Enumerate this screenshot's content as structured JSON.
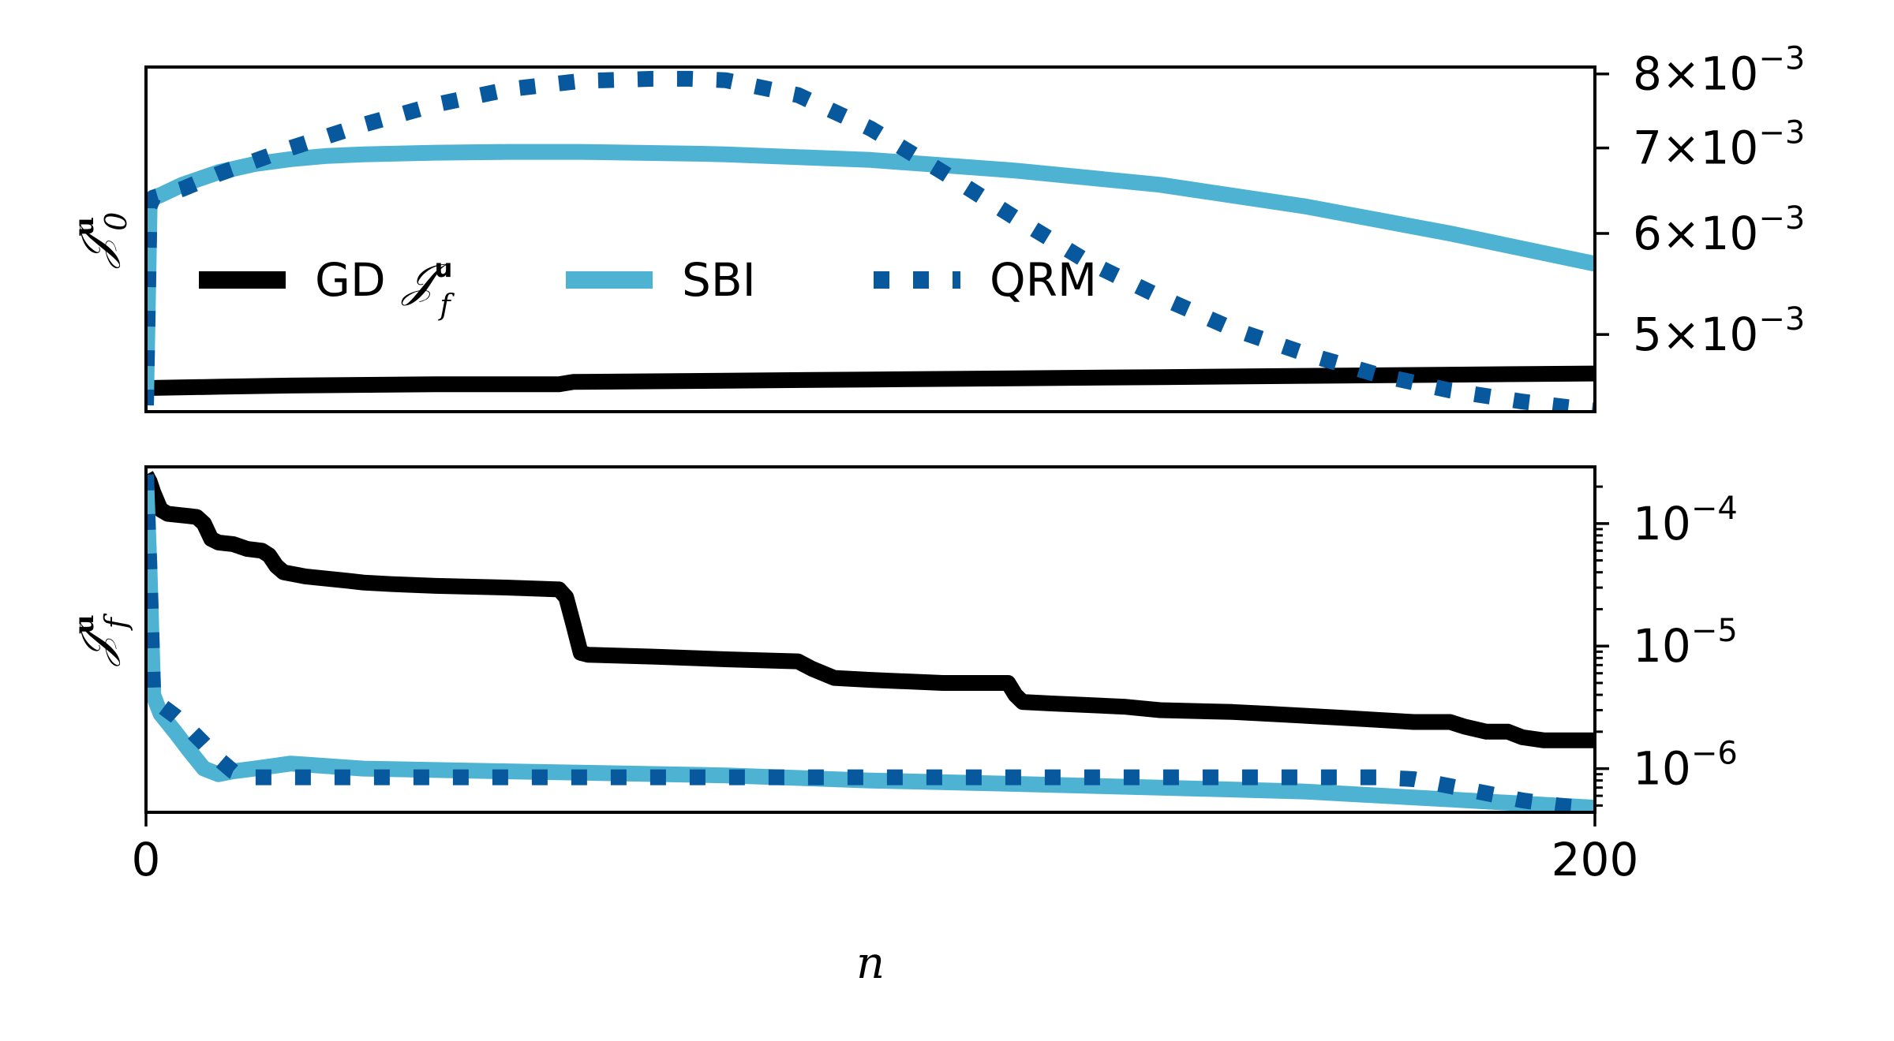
{
  "chart_data": [
    {
      "type": "line",
      "ylabel": "𝒥",
      "ylabel_sup": "u",
      "ylabel_sub": "0",
      "yscale": "log",
      "xlim": [
        0,
        200
      ],
      "ylim": [
        0.00435,
        0.0081
      ],
      "yaxis_side": "right",
      "yticks": [
        {
          "value": 0.008,
          "mant": "8",
          "exp": "−3"
        },
        {
          "value": 0.007,
          "mant": "7",
          "exp": "−3"
        },
        {
          "value": 0.006,
          "mant": "6",
          "exp": "−3"
        },
        {
          "value": 0.005,
          "mant": "5",
          "exp": "−3"
        }
      ],
      "legend": {
        "placement": "center-left",
        "entries": [
          {
            "label": "GD",
            "math": "𝒥",
            "math_sup": "u",
            "math_sub": "f",
            "series": "GD"
          },
          {
            "label": "SBI",
            "series": "SBI"
          },
          {
            "label": "QRM",
            "series": "QRM"
          }
        ]
      },
      "series": [
        {
          "name": "GD",
          "color": "#000000",
          "style": "solid",
          "x": [
            0,
            1,
            10,
            20,
            40,
            57,
            59,
            80,
            100,
            120,
            140,
            160,
            180,
            200
          ],
          "y": [
            0.00454,
            0.00454,
            0.00455,
            0.00456,
            0.00457,
            0.00457,
            0.00459,
            0.0046,
            0.00461,
            0.00462,
            0.00463,
            0.00464,
            0.00465,
            0.00466
          ]
        },
        {
          "name": "SBI",
          "color": "#4eb3d3",
          "style": "solid",
          "x": [
            0,
            0.5,
            1,
            2,
            5,
            10,
            15,
            20,
            25,
            30,
            40,
            50,
            60,
            75,
            80,
            100,
            120,
            140,
            160,
            180,
            200
          ],
          "y": [
            0.0044,
            0.0063,
            0.0064,
            0.00643,
            0.00655,
            0.0067,
            0.0068,
            0.00686,
            0.0069,
            0.00692,
            0.00694,
            0.00695,
            0.00695,
            0.00693,
            0.00692,
            0.00685,
            0.00672,
            0.00655,
            0.0063,
            0.006,
            0.00568
          ]
        },
        {
          "name": "QRM",
          "color": "#08589e",
          "style": "dotted",
          "x": [
            0,
            0.5,
            1,
            5,
            10,
            20,
            30,
            40,
            50,
            60,
            70,
            75,
            80,
            90,
            100,
            110,
            120,
            130,
            140,
            150,
            160,
            170,
            180,
            190,
            200
          ],
          "y": [
            0.0044,
            0.0063,
            0.0064,
            0.0065,
            0.00668,
            0.007,
            0.0073,
            0.00757,
            0.00778,
            0.0079,
            0.00793,
            0.00793,
            0.00791,
            0.0077,
            0.00725,
            0.0067,
            0.00617,
            0.0057,
            0.00535,
            0.00505,
            0.00483,
            0.00465,
            0.00452,
            0.00443,
            0.00436
          ]
        }
      ]
    },
    {
      "type": "line",
      "ylabel": "𝒥",
      "ylabel_sup": "u",
      "ylabel_sub": "f",
      "yscale": "log",
      "xlim": [
        0,
        200
      ],
      "ylim": [
        4.4e-07,
        0.00029
      ],
      "yaxis_side": "right",
      "yticks": [
        {
          "value": 0.0001,
          "mant": "10",
          "exp": "−4"
        },
        {
          "value": 1e-05,
          "mant": "10",
          "exp": "−5"
        },
        {
          "value": 1e-06,
          "mant": "10",
          "exp": "−6"
        }
      ],
      "xticks": [
        {
          "value": 0,
          "label": "0"
        },
        {
          "value": 200,
          "label": "200"
        }
      ],
      "xlabel": "n",
      "series": [
        {
          "name": "GD",
          "color": "#000000",
          "style": "solid",
          "x": [
            0,
            0.5,
            1,
            2,
            3,
            6,
            7,
            8,
            9,
            10,
            12,
            14,
            16,
            17,
            18,
            19,
            20,
            22,
            24,
            28,
            30,
            34,
            40,
            50,
            57,
            58,
            59,
            60,
            61,
            70,
            80,
            90,
            92,
            95,
            100,
            110,
            119,
            120,
            121,
            125,
            130,
            135,
            140,
            150,
            155,
            160,
            165,
            170,
            175,
            180,
            182,
            185,
            188,
            190,
            193,
            200
          ],
          "y": [
            0.00025,
            0.00022,
            0.00018,
            0.00013,
            0.00012,
            0.000115,
            0.000113,
            0.0001,
            7.5e-05,
            7e-05,
            6.8e-05,
            6.2e-05,
            6e-05,
            5.5e-05,
            4.5e-05,
            4e-05,
            3.9e-05,
            3.7e-05,
            3.6e-05,
            3.4e-05,
            3.3e-05,
            3.2e-05,
            3.1e-05,
            3e-05,
            2.9e-05,
            2.5e-05,
            1.5e-05,
            8.8e-06,
            8.5e-06,
            8.2e-06,
            7.8e-06,
            7.5e-06,
            6.5e-06,
            5.5e-06,
            5.3e-06,
            5e-06,
            5e-06,
            4e-06,
            3.5e-06,
            3.4e-06,
            3.3e-06,
            3.2e-06,
            3e-06,
            2.9e-06,
            2.8e-06,
            2.7e-06,
            2.6e-06,
            2.5e-06,
            2.4e-06,
            2.4e-06,
            2.2e-06,
            2e-06,
            2e-06,
            1.8e-06,
            1.7e-06,
            1.7e-06
          ]
        },
        {
          "name": "SBI",
          "color": "#4eb3d3",
          "style": "solid",
          "x": [
            0,
            0.5,
            1,
            2,
            4,
            6,
            8,
            10,
            12,
            15,
            20,
            30,
            50,
            80,
            100,
            120,
            140,
            160,
            180,
            200
          ],
          "y": [
            0.00025,
            4e-05,
            4e-06,
            2.8e-06,
            2e-06,
            1.4e-06,
            1e-06,
            9e-07,
            9.5e-07,
            1e-06,
            1.1e-06,
            1e-06,
            9.5e-07,
            8.8e-07,
            8e-07,
            7.5e-07,
            7e-07,
            6.5e-07,
            5.6e-07,
            4.8e-07
          ]
        },
        {
          "name": "QRM",
          "color": "#08589e",
          "style": "dotted",
          "x": [
            0,
            0.5,
            1,
            2,
            4,
            6,
            8,
            10,
            12,
            14,
            20,
            50,
            100,
            150,
            170,
            175,
            180,
            185,
            190,
            195,
            200
          ],
          "y": [
            0.00025,
            4e-05,
            4e-06,
            3.3e-06,
            2.7e-06,
            2.1e-06,
            1.6e-06,
            1.2e-06,
            9.5e-07,
            8.5e-07,
            8.5e-07,
            8.5e-07,
            8.5e-07,
            8.5e-07,
            8.5e-07,
            8.2e-07,
            7.2e-07,
            6.3e-07,
            5.5e-07,
            5e-07,
            4.7e-07
          ]
        }
      ]
    }
  ]
}
